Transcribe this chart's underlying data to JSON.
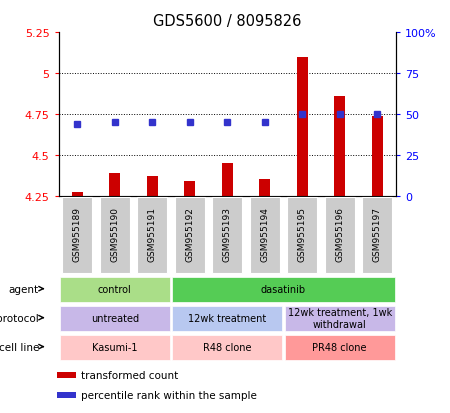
{
  "title": "GDS5600 / 8095826",
  "samples": [
    "GSM955189",
    "GSM955190",
    "GSM955191",
    "GSM955192",
    "GSM955193",
    "GSM955194",
    "GSM955195",
    "GSM955196",
    "GSM955197"
  ],
  "transformed_count": [
    4.27,
    4.39,
    4.37,
    4.34,
    4.45,
    4.35,
    5.1,
    4.86,
    4.74
  ],
  "percentile_rank": [
    44,
    45,
    45,
    45,
    45,
    45,
    50,
    50,
    50
  ],
  "ylim_left": [
    4.25,
    5.25
  ],
  "ylim_right": [
    0,
    100
  ],
  "yticks_left": [
    4.25,
    4.5,
    4.75,
    5.0,
    5.25
  ],
  "yticks_right": [
    0,
    25,
    50,
    75,
    100
  ],
  "ytick_labels_left": [
    "4.25",
    "4.5",
    "4.75",
    "5",
    "5.25"
  ],
  "ytick_labels_right": [
    "0",
    "25",
    "50",
    "75",
    "100%"
  ],
  "hlines": [
    4.5,
    4.75,
    5.0
  ],
  "bar_color": "#cc0000",
  "dot_color": "#3333cc",
  "bar_bottom": 4.25,
  "agent_labels": [
    {
      "text": "control",
      "start": 0,
      "end": 3,
      "color": "#aade88"
    },
    {
      "text": "dasatinib",
      "start": 3,
      "end": 9,
      "color": "#55cc55"
    }
  ],
  "protocol_labels": [
    {
      "text": "untreated",
      "start": 0,
      "end": 3,
      "color": "#c8b8e8"
    },
    {
      "text": "12wk treatment",
      "start": 3,
      "end": 6,
      "color": "#b8c8f0"
    },
    {
      "text": "12wk treatment, 1wk\nwithdrawal",
      "start": 6,
      "end": 9,
      "color": "#c8b8e8"
    }
  ],
  "cellline_labels": [
    {
      "text": "Kasumi-1",
      "start": 0,
      "end": 3,
      "color": "#ffc8c8"
    },
    {
      "text": "R48 clone",
      "start": 3,
      "end": 6,
      "color": "#ffc8c8"
    },
    {
      "text": "PR48 clone",
      "start": 6,
      "end": 9,
      "color": "#ff9999"
    }
  ],
  "legend_items": [
    {
      "color": "#cc0000",
      "label": "transformed count"
    },
    {
      "color": "#3333cc",
      "label": "percentile rank within the sample"
    }
  ],
  "row_labels": [
    "agent",
    "protocol",
    "cell line"
  ],
  "background_color": "#ffffff"
}
